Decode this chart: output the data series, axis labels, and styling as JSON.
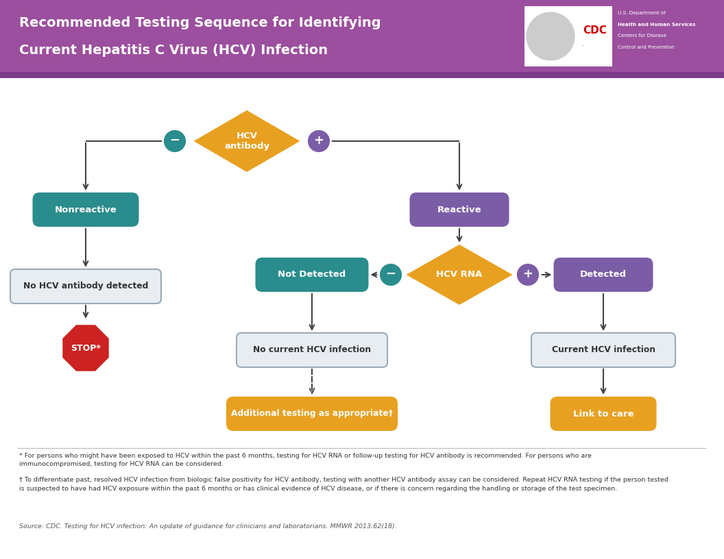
{
  "title_line1": "Recommended Testing Sequence for Identifying",
  "title_line2": "Current Hepatitis C Virus (HCV) Infection",
  "header_bg": "#9B4F9E",
  "header_text_color": "#FFFFFF",
  "body_bg": "#FFFFFF",
  "teal_color": "#2A8C8C",
  "purple_color": "#7B5DA6",
  "gold_color": "#E8A020",
  "gray_box_bg": "#E8EDF2",
  "gray_box_edge": "#9AAAB8",
  "red_color": "#CC2222",
  "white": "#FFFFFF",
  "arrow_color": "#444444",
  "stripe_color": "#7A3A8A",
  "footnote1": "* For persons who might have been exposed to HCV within the past 6 months, testing for HCV RNA or follow-up testing for HCV antibody is recommended. For persons who are\nimmunocompromised, testing for HCV RNA can be considered.",
  "footnote2": "† To differentiate past, resolved HCV infection from biologic false positivity for HCV antibody, testing with another HCV antibody assay can be considered. Repeat HCV RNA testing if the person tested\nis suspected to have had HCV exposure within the past 6 months or has clinical evidence of HCV disease, or if there is concern regarding the handling or storage of the test specimen.",
  "footnote3": "Source: CDC. Testing for HCV infection: An update of guidance for clinicians and laboratorians. MMWR 2013;62(18)."
}
